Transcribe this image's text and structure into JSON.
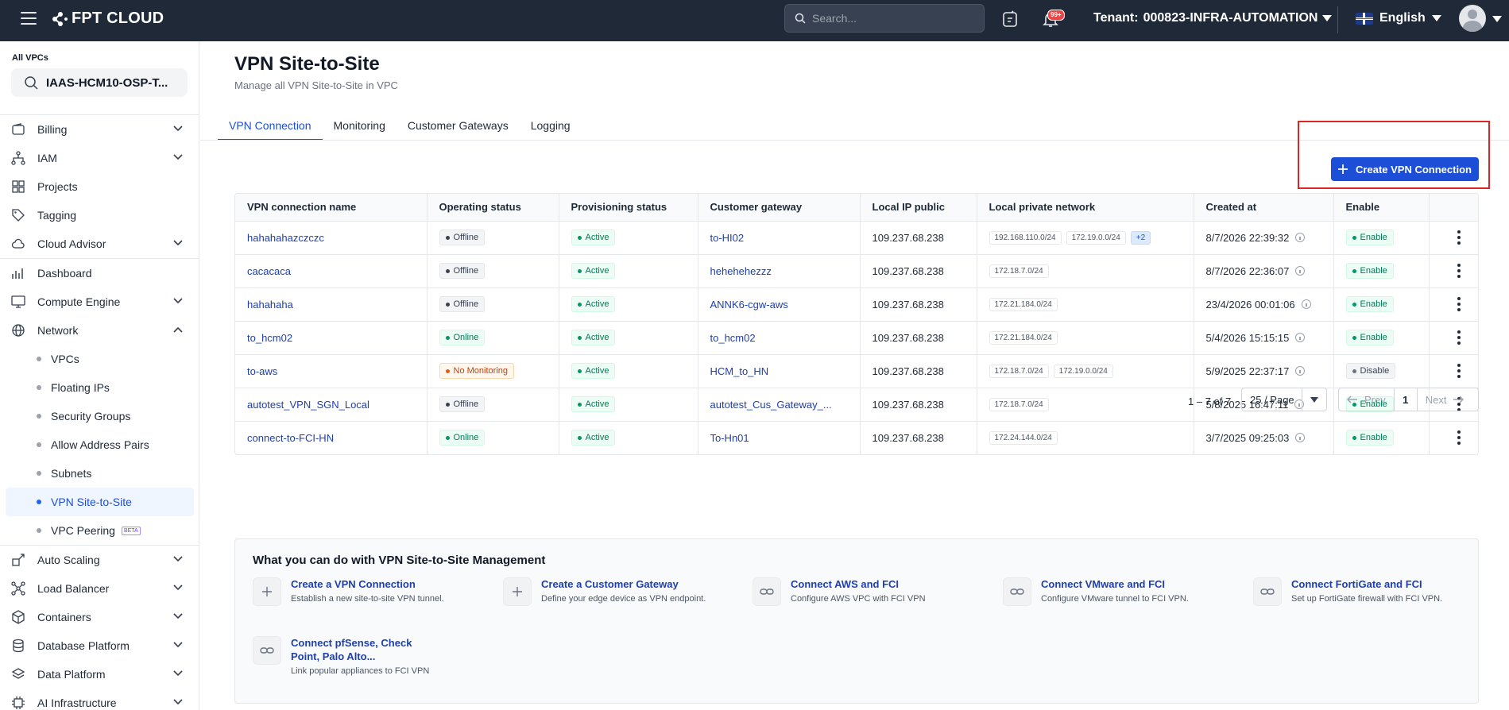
{
  "topbar": {
    "brand": "FPT CLOUD",
    "search_placeholder": "Search...",
    "notif_badge": "99+",
    "tenant_label": "Tenant:",
    "tenant_value": "000823-INFRA-AUTOMATION",
    "language": "English"
  },
  "sidebar": {
    "vpc_label": "All VPCs",
    "vpc_value": "IAAS-HCM10-OSP-T...",
    "items": [
      {
        "label": "Billing",
        "icon": "wallet-icon",
        "expandable": true
      },
      {
        "label": "IAM",
        "icon": "hierarchy-icon",
        "expandable": true
      },
      {
        "label": "Projects",
        "icon": "grid-icon",
        "expandable": false
      },
      {
        "label": "Tagging",
        "icon": "tag-icon",
        "expandable": false
      },
      {
        "label": "Cloud Advisor",
        "icon": "cloud-icon",
        "expandable": true
      },
      {
        "label": "Dashboard",
        "icon": "chart-icon",
        "expandable": false
      },
      {
        "label": "Compute Engine",
        "icon": "monitor-icon",
        "expandable": true
      },
      {
        "label": "Network",
        "icon": "globe-icon",
        "expandable": true,
        "open": true
      }
    ],
    "network_sub": [
      {
        "label": "VPCs"
      },
      {
        "label": "Floating IPs"
      },
      {
        "label": "Security Groups"
      },
      {
        "label": "Allow Address Pairs"
      },
      {
        "label": "Subnets"
      },
      {
        "label": "VPN Site-to-Site",
        "active": true
      },
      {
        "label": "VPC Peering",
        "badge": "BETA"
      }
    ],
    "items_after": [
      {
        "label": "Auto Scaling",
        "icon": "scale-icon"
      },
      {
        "label": "Load Balancer",
        "icon": "network-nodes-icon"
      },
      {
        "label": "Containers",
        "icon": "box-icon"
      },
      {
        "label": "Database Platform",
        "icon": "database-icon"
      },
      {
        "label": "Data Platform",
        "icon": "layers-icon"
      },
      {
        "label": "AI Infrastructure",
        "icon": "chip-icon"
      }
    ]
  },
  "page": {
    "title": "VPN Site-to-Site",
    "subtitle": "Manage all VPN Site-to-Site in VPC",
    "tabs": [
      "VPN Connection",
      "Monitoring",
      "Customer Gateways",
      "Logging"
    ],
    "create_button": "Create VPN Connection"
  },
  "table": {
    "headers": [
      "VPN connection name",
      "Operating status",
      "Provisioning status",
      "Customer gateway",
      "Local IP public",
      "Local private network",
      "Created at",
      "Enable",
      ""
    ],
    "rows": [
      {
        "name": "hahahahazczczc",
        "op": "Offline",
        "prov": "Active",
        "gw": "to-HI02",
        "ip": "109.237.68.238",
        "nets": [
          "192.168.110.0/24",
          "172.19.0.0/24"
        ],
        "more": "+2",
        "created": "8/7/2026 22:39:32",
        "enable": "Enable"
      },
      {
        "name": "cacacaca",
        "op": "Offline",
        "prov": "Active",
        "gw": "hehehehezzz",
        "ip": "109.237.68.238",
        "nets": [
          "172.18.7.0/24"
        ],
        "more": "",
        "created": "8/7/2026 22:36:07",
        "enable": "Enable"
      },
      {
        "name": "hahahaha",
        "op": "Offline",
        "prov": "Active",
        "gw": "ANNK6-cgw-aws",
        "ip": "109.237.68.238",
        "nets": [
          "172.21.184.0/24"
        ],
        "more": "",
        "created": "23/4/2026 00:01:06",
        "enable": "Enable"
      },
      {
        "name": "to_hcm02",
        "op": "Online",
        "prov": "Active",
        "gw": "to_hcm02",
        "ip": "109.237.68.238",
        "nets": [
          "172.21.184.0/24"
        ],
        "more": "",
        "created": "5/4/2026 15:15:15",
        "enable": "Enable"
      },
      {
        "name": "to-aws",
        "op": "No Monitoring",
        "prov": "Active",
        "gw": "HCM_to_HN",
        "ip": "109.237.68.238",
        "nets": [
          "172.18.7.0/24",
          "172.19.0.0/24"
        ],
        "more": "",
        "created": "5/9/2025 22:37:17",
        "enable": "Disable"
      },
      {
        "name": "autotest_VPN_SGN_Local",
        "op": "Offline",
        "prov": "Active",
        "gw": "autotest_Cus_Gateway_...",
        "ip": "109.237.68.238",
        "nets": [
          "172.18.7.0/24"
        ],
        "more": "",
        "created": "5/8/2025 16:47:11",
        "enable": "Enable"
      },
      {
        "name": "connect-to-FCI-HN",
        "op": "Online",
        "prov": "Active",
        "gw": "To-Hn01",
        "ip": "109.237.68.238",
        "nets": [
          "172.24.144.0/24"
        ],
        "more": "",
        "created": "3/7/2025 09:25:03",
        "enable": "Enable"
      }
    ]
  },
  "pagination": {
    "info": "1 – 7 of 7",
    "per_page": "25 / Page",
    "prev": "Prev",
    "page": "1",
    "next": "Next"
  },
  "help": {
    "title": "What you can do with VPN Site-to-Site Management",
    "cards": [
      {
        "title": "Create a VPN Connection",
        "desc": "Establish a new site-to-site VPN tunnel.",
        "icon": "plus-icon"
      },
      {
        "title": "Create a Customer Gateway",
        "desc": "Define your edge device as VPN endpoint.",
        "icon": "plus-icon"
      },
      {
        "title": "Connect AWS and FCI",
        "desc": "Configure AWS VPC with FCI VPN",
        "icon": "link-icon"
      },
      {
        "title": "Connect VMware and FCI",
        "desc": "Configure VMware tunnel to FCI VPN.",
        "icon": "link-icon"
      },
      {
        "title": "Connect FortiGate and FCI",
        "desc": "Set up FortiGate firewall with FCI VPN.",
        "icon": "link-icon"
      },
      {
        "title": "Connect pfSense, Check Point, Palo Alto...",
        "desc": "Link popular appliances to FCI VPN",
        "icon": "link-icon"
      }
    ]
  }
}
